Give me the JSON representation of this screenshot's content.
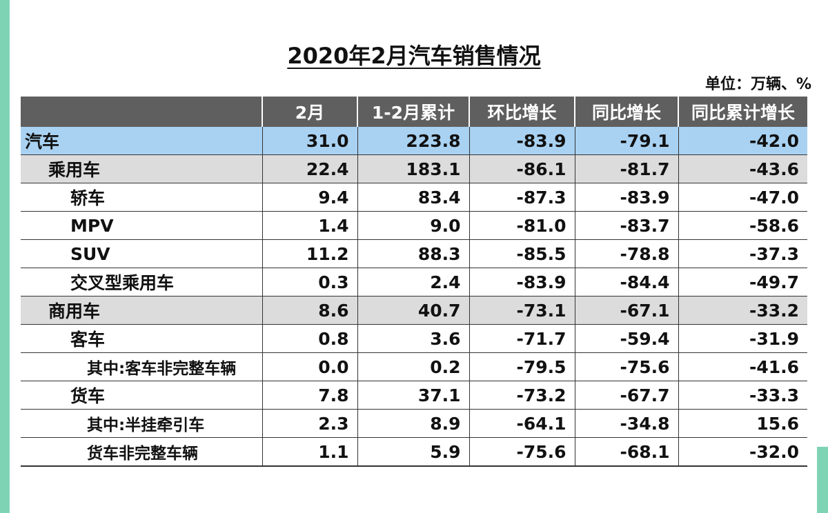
{
  "title": "2020年2月汽车销售情况",
  "unit": "单位：万辆、%",
  "columns": [
    "",
    "2月",
    "1-2月累计",
    "环比增长",
    "同比增长",
    "同比累计增长"
  ],
  "rows": [
    {
      "name": "汽车",
      "level": 0,
      "style": "total",
      "values": [
        "31.0",
        "223.8",
        "-83.9",
        "-79.1",
        "-42.0"
      ]
    },
    {
      "name": "乘用车",
      "level": 1,
      "style": "cat",
      "values": [
        "22.4",
        "183.1",
        "-86.1",
        "-81.7",
        "-43.6"
      ]
    },
    {
      "name": "轿车",
      "level": 2,
      "style": "",
      "values": [
        "9.4",
        "83.4",
        "-87.3",
        "-83.9",
        "-47.0"
      ]
    },
    {
      "name": "MPV",
      "level": 2,
      "style": "",
      "values": [
        "1.4",
        "9.0",
        "-81.0",
        "-83.7",
        "-58.6"
      ]
    },
    {
      "name": "SUV",
      "level": 2,
      "style": "",
      "values": [
        "11.2",
        "88.3",
        "-85.5",
        "-78.8",
        "-37.3"
      ]
    },
    {
      "name": "交叉型乘用车",
      "level": 2,
      "style": "",
      "values": [
        "0.3",
        "2.4",
        "-83.9",
        "-84.4",
        "-49.7"
      ]
    },
    {
      "name": "商用车",
      "level": 1,
      "style": "cat",
      "values": [
        "8.6",
        "40.7",
        "-73.1",
        "-67.1",
        "-33.2"
      ]
    },
    {
      "name": "客车",
      "level": 2,
      "style": "",
      "values": [
        "0.8",
        "3.6",
        "-71.7",
        "-59.4",
        "-31.9"
      ]
    },
    {
      "name": "其中:客车非完整车辆",
      "level": 3,
      "style": "",
      "values": [
        "0.0",
        "0.2",
        "-79.5",
        "-75.6",
        "-41.6"
      ]
    },
    {
      "name": "货车",
      "level": 2,
      "style": "",
      "values": [
        "7.8",
        "37.1",
        "-73.2",
        "-67.7",
        "-33.3"
      ]
    },
    {
      "name": "其中:半挂牵引车",
      "level": 3,
      "style": "",
      "values": [
        "2.3",
        "8.9",
        "-64.1",
        "-34.8",
        "15.6"
      ]
    },
    {
      "name": "货车非完整车辆",
      "level": 3,
      "style": "",
      "values": [
        "1.1",
        "5.9",
        "-75.6",
        "-68.1",
        "-32.0"
      ]
    }
  ]
}
